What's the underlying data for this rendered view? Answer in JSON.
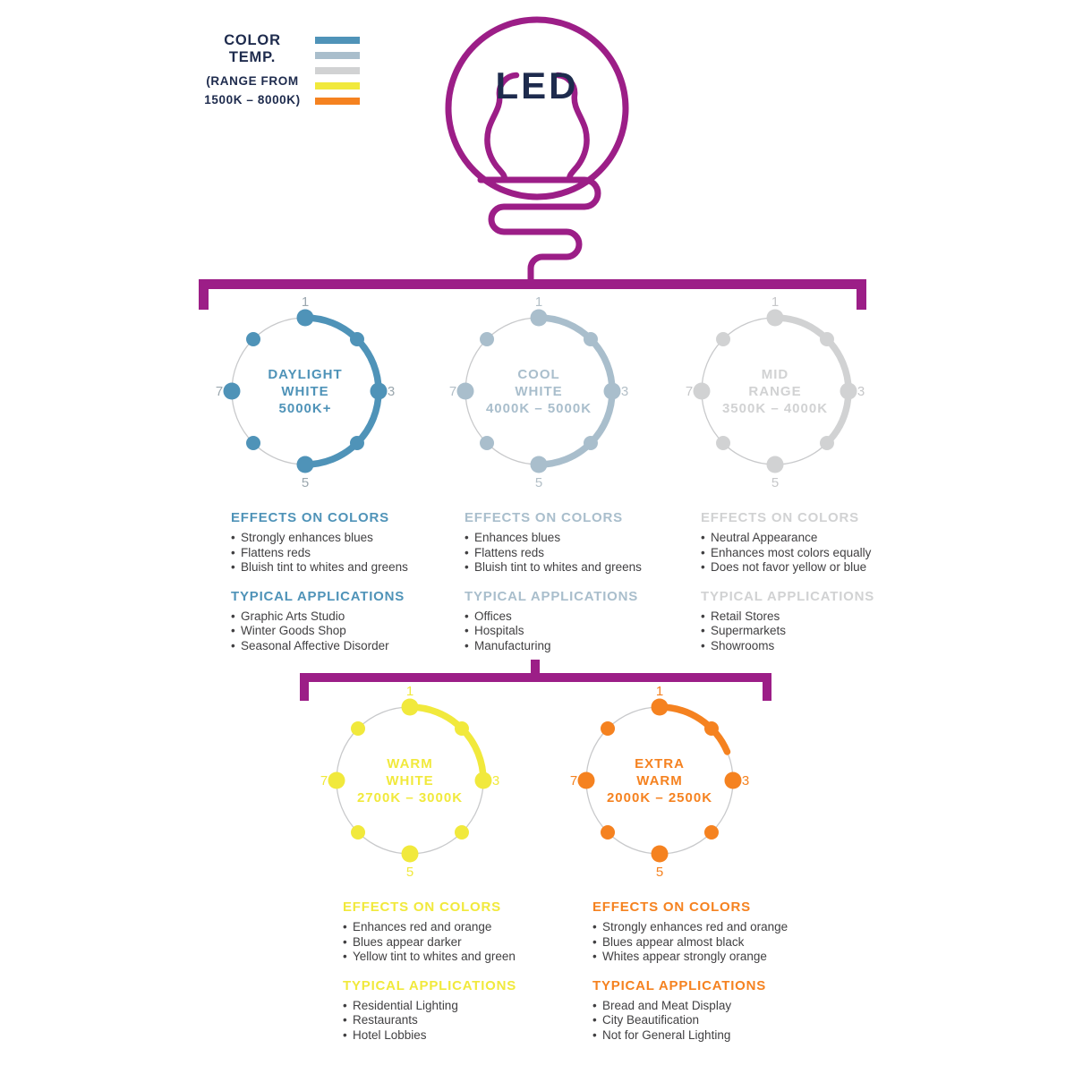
{
  "palette": {
    "magenta": "#9c1e87",
    "navy": "#1e2b4d",
    "body_text": "#414042",
    "ring_gray": "#c8c9cb"
  },
  "legend": {
    "title": "COLOR TEMP.",
    "subtitle_1": "(RANGE FROM",
    "subtitle_2": "1500K – 8000K)",
    "swatches": [
      "#4f93b8",
      "#a9becc",
      "#d1d2d3",
      "#f1e93c",
      "#f58220"
    ]
  },
  "bulb": {
    "label": "LED"
  },
  "tick_labels": [
    "1",
    "3",
    "5",
    "7"
  ],
  "categories": [
    {
      "name_lines": [
        "DAYLIGHT",
        "WHITE",
        "5000K+"
      ],
      "color": "#4f93b8",
      "tick_color": "#9ba7ae",
      "arc_degrees": 180,
      "effects": {
        "title": "EFFECTS ON COLORS",
        "items": [
          "Strongly enhances blues",
          "Flattens reds",
          "Bluish tint to whites and greens"
        ]
      },
      "applications": {
        "title": "TYPICAL APPLICATIONS",
        "items": [
          "Graphic Arts Studio",
          "Winter Goods Shop",
          "Seasonal Affective Disorder"
        ]
      }
    },
    {
      "name_lines": [
        "COOL",
        "WHITE",
        "4000K – 5000K"
      ],
      "color": "#a9becc",
      "tick_color": "#b3bfc7",
      "arc_degrees": 180,
      "effects": {
        "title": "EFFECTS ON COLORS",
        "items": [
          "Enhances blues",
          "Flattens reds",
          "Bluish tint to whites and greens"
        ]
      },
      "applications": {
        "title": "TYPICAL APPLICATIONS",
        "items": [
          "Offices",
          "Hospitals",
          "Manufacturing"
        ]
      }
    },
    {
      "name_lines": [
        "MID",
        "RANGE",
        "3500K – 4000K"
      ],
      "color": "#d1d2d3",
      "tick_color": "#c6c7c9",
      "arc_degrees": 135,
      "effects": {
        "title": "EFFECTS ON COLORS",
        "items": [
          "Neutral Appearance",
          "Enhances most colors equally",
          "Does not favor yellow or blue"
        ]
      },
      "applications": {
        "title": "TYPICAL APPLICATIONS",
        "items": [
          "Retail Stores",
          "Supermarkets",
          "Showrooms"
        ]
      }
    },
    {
      "name_lines": [
        "WARM",
        "WHITE",
        "2700K – 3000K"
      ],
      "color": "#f1e93c",
      "tick_color": "#f1e93c",
      "arc_degrees": 90,
      "effects": {
        "title": "EFFECTS ON COLORS",
        "items": [
          "Enhances red and orange",
          "Blues appear darker",
          "Yellow tint to whites and green"
        ]
      },
      "applications": {
        "title": "TYPICAL APPLICATIONS",
        "items": [
          "Residential Lighting",
          "Restaurants",
          "Hotel Lobbies"
        ]
      }
    },
    {
      "name_lines": [
        "EXTRA",
        "WARM",
        "2000K – 2500K"
      ],
      "color": "#f58220",
      "tick_color": "#f58220",
      "arc_degrees": 67,
      "effects": {
        "title": "EFFECTS ON COLORS",
        "items": [
          "Strongly enhances red and orange",
          "Blues appear almost black",
          "Whites appear strongly orange"
        ]
      },
      "applications": {
        "title": "TYPICAL APPLICATIONS",
        "items": [
          "Bread and Meat Display",
          "City Beautification",
          "Not for General Lighting"
        ]
      }
    }
  ]
}
